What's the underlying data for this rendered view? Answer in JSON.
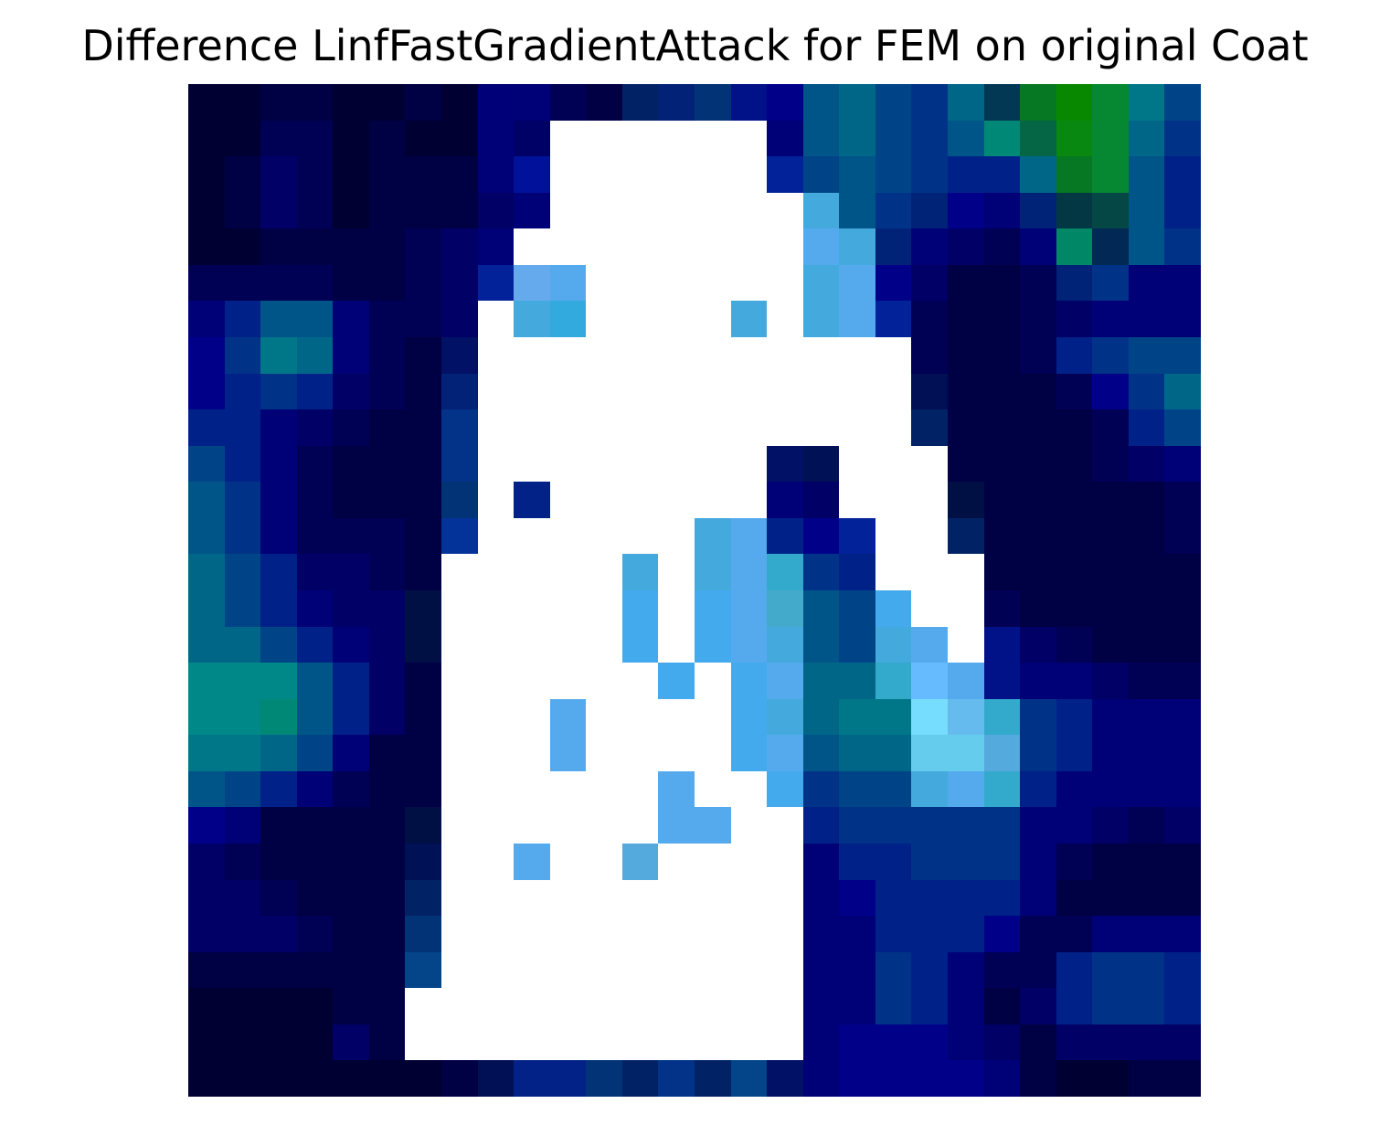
{
  "title": "Difference LinfFastGradientAttack for FEM on original Coat",
  "image": {
    "rows": 28,
    "cols": 28,
    "pixels": [
      "00033 00033 00044 00044 00033 00033 00044 00033 00078 00177 00055 10044 22266 22277 33377 11288 00188 05588 06688 04488 03388 06688 33855 67722 88800 68833 07788 04488",
      "00033 00033 00055 00055 00033 00044 00033 00033 00077 00166 44bb 77cc 66aa 55aa 55aa 66dd 00177 05588 06688 04488 03388 05588 08877 46644 88811 68833 06688 03388",
      "00033 00044 00066 00055 00033 00044 00044 00044 00077 11199 55cc 55bb 55aa 44aa 44aa 55cc 22299 04488 05588 04488 03388 02288 02288 06688 67722 68833 05588 02288",
      "00033 00044 00066 00055 00033 00044 00044 00044 00066 00077 55dd 44bb 55aa 55aa 55aa 44bb 55ee 44aadd 05588 03388 02277 00188 00177 02277 33744 44744 05588 02288",
      "00033 00033 00044 00044 00044 00044 00055 00066 00077 44cc 77ee 55cc 66aa 55aa 44aa 33aa 44cc 55aaee 44aadd 02277 00177 00066 00055 00177 08866 22855 05588 03388",
      "00055 00055 00055 00055 00044 00044 00055 00066 22299 66aaee 55aaee 44bb 33aa 33aa 33aa 44aa 44dd 44aadd 55aaee 00188 00066 00044 00044 00055 02277 03388 00177 00177",
      "00177 02288 05588 05588 00177 00055 00055 00066 55dd 44aadd 33aadd 33aa 33aa 44aa 33aa 44aadd 33aa 44aadd 55aaee 22299 00055 00044 00044 00055 00066 00177 00177 00177",
      "00188 03388 07788 06688 00177 00055 00044 11166 55dd 44cc 44dd 33aa 33aa 44bb 44bb 44aa 55aa 44dd 44dd 44bb 00055 00044 00044 00055 02288 03388 04488 04488",
      "00188 02288 03388 02288 00066 00055 00044 22277 55cc 44cc 44dd 44aa 55aa 55cc 55cc 55aa 66bb 55cc 44bb 55cc 11055 00044 00044 00044 00055 00188 03388 06688",
      "02288 02288 00177 00066 00055 00044 00044 33388 55bb 44bb 33aa 33aa 44bb 44cc 55cc 55bb 66bb 55aa 44aa 44aa 22266 00044 00044 00044 00044 00055 02288 04488",
      "04488 02288 00177 00055 00044 00044 00044 33388 55aa 33aa 33aa 33aa 44cc 44dd 44dd 55ee 11166 11155 77cc 44aa 44aa 00044 00044 00044 00044 00055 00066 00077",
      "05588 03388 00177 00055 00044 00044 00044 33377 55aa 22288 33aa 33aa 33dd 44dd 44dd 44dd 00077 00066 55aa 44cc 44bb 11044 00044 00044 00044 00044 00044 00055",
      "05588 03388 00177 00055 00055 00055 00044 33399 44aa 33aa 44aa 33aa 33dd 44cc 44aadd 55aaee 02288 00188 22299 55ee 44cc 22266 00044 00044 00044 00044 00044 00055",
      "06688 04488 02288 00066 00066 00055 00044 44aa 44aa 33aa 44bb 44dd 44aadd 44aa 44aadd 55aaee 33aacc 03388 02288 55ee 44cc 33aa 00044 00044 00044 00044 00044 00044",
      "06688 04488 02288 00177 00066 00066 11044 55bb 44aa 44aa 55bb 55dd 44aaee 55aa 44aaee 55aaee 44aacc 05588 04488 44aaee 55ee 33aa 00055 00044 00044 00044 00044 00044",
      "06688 06688 04488 02288 00177 00066 11044 55bb 44aa 44aa 55cc 44dd 44aaee 44cc 44aaee 55aaee 44aadd 05588 04488 44aadd 55aaee 33cc 11188 00066 00055 00044 00044 00044",
      "08888 08888 08888 05588 02288 00066 00044 55aa 44aa 44aa 55cc 44cc 44cc 44aaee 55aa 44aaee 55aaee 06688 06688 33aacc 66bbff 55aaee 11288 00177 00077 00066 00055 00055",
      "08888 08888 08877 05588 02288 00066 00044 55aa 44aa 44aa 55aaee 44dd 44dd 44dd 44dd 44aaee 44aadd 06688 07788 07788 77ddff 66bbee 33aacc 03388 02288 00177 00077 00077",
      "07788 07788 06688 04488 00077 00044 00044 55bb 44aa 55aa 55aaee 44cc 44cc 44cc 44cc 44aaee 55aaee 05588 06688 06688 66ccee 66ccee 55aadd 03388 02288 00177 00077 00077",
      "05588 04488 02288 00177 00055 00044 00044 55bb 44aa 55aa 55bb 44bb 44dd 55aaee 44dd 44dd 44aaee 03388 04488 04488 44aadd 55aaee 33aacc 02288 00177 00077 00077 00077",
      "00188 00077 00044 00044 00044 00044 11044 55bb 44aa 55aa 55cc 44aa 44aa 55aaee 55aaee 55dd 55dd 02288 03388 03388 03388 03388 03388 00177 00077 00066 00055 00066",
      "00066 00055 00044 00044 00044 00044 11155 55bb 44aa 55aaee 44aa 44aa 55aadd 44aa 44aa 44cc 44cc 00177 02288 02288 03388 03388 03388 00177 00055 00044 00044 00044",
      "00066 00066 00055 00044 00044 00044 22266 55bb 44aa 55aa 44aa 44aa 44aa 44cc 44aa 44cc 44cc 00077 00188 02288 02288 02288 02288 00077 00044 00044 00044 00044",
      "00066 00066 00066 00055 00044 00044 33377 55bb 44aa 55aa 55aa 55aa 55aa 55cc 44aa 44cc 44cc 00077 00177 02288 02288 02288 00188 00055 00055 00177 00177 00177",
      "00044 00044 00044 00044 00044 00044 44488 55aa 44aa 77ff 55aa 55aa 44aa 55dd 44aa 44cc 44cc 00077 00177 03388 02288 00177 00055 00055 02288 03388 03388 02288",
      "00033 00033 00033 00033 00044 00044 55aa 55aa 55aa 66cc 55aa 55aa 44aa 55aa 55aa 44aa 44cc 00077 00177 03388 02288 00177 00044 00066 02288 03388 03388 02288",
      "00033 00033 00033 00033 00066 00044 44aa 55aa 55bb 77dd 55cc 55bb 66bb 77cc 55aa 44aa 33aa 00077 00188 00188 00188 00177 00066 00044 00066 00066 00066 00066",
      "00033 00033 00033 00033 00033 00033 00033 00044 11055 22288 22288 33377 22266 33388 22266 44488 11166 00077 00188 00188 00188 00188 00077 00044 00033 00033 00044 00044"
    ]
  }
}
